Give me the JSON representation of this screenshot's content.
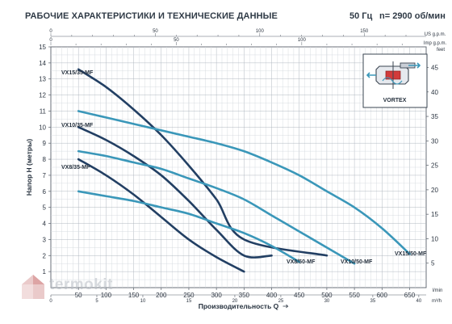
{
  "header": {
    "title": "РАБОЧИЕ ХАРАКТЕРИСТИКИ И ТЕХНИЧЕСКИЕ ДАННЫЕ",
    "frequency": "50 Гц",
    "speed": "n= 2900 об/мин"
  },
  "watermark": {
    "text": "termokit",
    "logo_icon": "house-logo-icon"
  },
  "inset": {
    "label": "VORTEX",
    "icon": "vortex-impeller-icon"
  },
  "chart_data": {
    "type": "line",
    "xlabel": "Производительность Q",
    "ylabel": "Напор H (метры)",
    "xlim": [
      0,
      680
    ],
    "ylim": [
      0,
      15
    ],
    "x_unit_main": "l/min",
    "x_ticks_main": [
      50,
      100,
      150,
      200,
      250,
      300,
      350,
      400,
      450,
      500,
      550,
      600,
      650
    ],
    "x_unit_m3h": "m³/h",
    "x_ticks_m3h": [
      0,
      5,
      10,
      15,
      20,
      25,
      30,
      35,
      40
    ],
    "x_unit_usgpm": "US g.p.m.",
    "x_ticks_usgpm": [
      0,
      50,
      100,
      150
    ],
    "x_unit_impgpm": "Imp g.p.m.",
    "x_ticks_impgpm": [
      0,
      50,
      100
    ],
    "y_ticks": [
      1,
      2,
      3,
      4,
      5,
      6,
      7,
      8,
      9,
      10,
      11,
      12,
      13,
      14,
      15
    ],
    "y_unit_feet": "feet",
    "y_ticks_feet": [
      5,
      10,
      15,
      20,
      25,
      30,
      35,
      40,
      45
    ],
    "grid": true,
    "colors": {
      "dark": "#223f63",
      "light": "#3a97b9"
    },
    "series": [
      {
        "name": "VX15/35-MF",
        "style": "dark",
        "x": [
          50,
          100,
          150,
          200,
          250,
          300,
          350,
          400,
          450,
          500
        ],
        "y": [
          13.6,
          12.5,
          11.1,
          9.5,
          7.6,
          5.5,
          3.0,
          2.0,
          1.8,
          2.0
        ]
      },
      {
        "name": "VX10/35-MF",
        "style": "dark",
        "x": [
          50,
          100,
          150,
          200,
          250,
          300,
          350,
          400
        ],
        "y": [
          10.0,
          9.2,
          8.2,
          7.0,
          5.4,
          3.6,
          2.0,
          2.0
        ]
      },
      {
        "name": "VX8/35-MF",
        "style": "dark",
        "x": [
          50,
          100,
          150,
          200,
          250,
          300,
          350
        ],
        "y": [
          8.0,
          7.0,
          5.8,
          4.4,
          3.0,
          1.9,
          1.0
        ]
      },
      {
        "name": "VX15/50-MF",
        "style": "light",
        "x": [
          50,
          100,
          150,
          200,
          250,
          300,
          350,
          400,
          450,
          500,
          550,
          600,
          650
        ],
        "y": [
          11.0,
          10.6,
          10.2,
          9.8,
          9.4,
          9.0,
          8.5,
          7.8,
          7.0,
          6.0,
          5.0,
          3.7,
          2.1
        ]
      },
      {
        "name": "VX10/50-MF",
        "style": "light",
        "x": [
          50,
          100,
          150,
          200,
          250,
          300,
          350,
          400,
          450,
          500,
          550
        ],
        "y": [
          8.5,
          8.2,
          7.8,
          7.4,
          6.8,
          6.2,
          5.5,
          4.5,
          3.5,
          2.5,
          1.5
        ]
      },
      {
        "name": "VX8/50-MF",
        "style": "light",
        "x": [
          50,
          100,
          150,
          200,
          250,
          300,
          350,
          400,
          450
        ],
        "y": [
          6.0,
          5.7,
          5.4,
          5.0,
          4.6,
          4.0,
          3.4,
          2.6,
          1.6
        ]
      }
    ]
  }
}
